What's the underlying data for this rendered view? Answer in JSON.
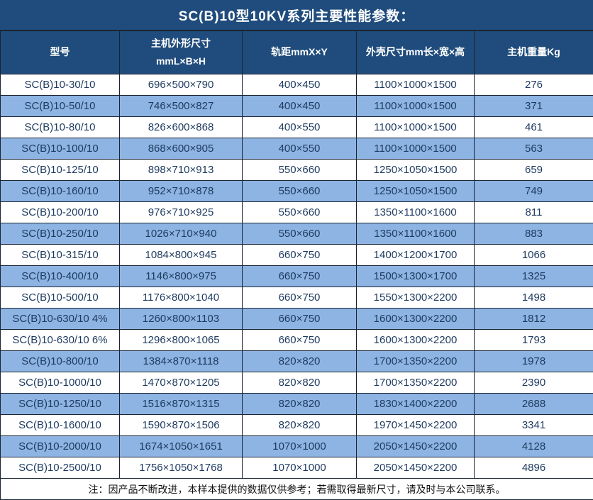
{
  "title": "SC(B)10型10KV系列主要性能参数：",
  "colors": {
    "header_bg": "#1F4C7C",
    "stripe_bg": "#8DB4E2",
    "row_bg": "#FFFFFF",
    "header_text": "#FFFFFF",
    "cell_text": "#1E3A5F",
    "note_text": "#111111",
    "border": "#1B2433"
  },
  "table": {
    "columns": [
      "型号",
      "主机外形尺寸\nmmL×B×H",
      "轨距mmX×Y",
      "外壳尺寸mm长×宽×高",
      "主机重量Kg"
    ],
    "rows": [
      [
        "SC(B)10-30/10",
        "696×500×790",
        "400×450",
        "1100×1000×1500",
        "276"
      ],
      [
        "SC(B)10-50/10",
        "746×500×827",
        "400×450",
        "1100×1000×1500",
        "371"
      ],
      [
        "SC(B)10-80/10",
        "826×600×868",
        "400×550",
        "1100×1000×1500",
        "461"
      ],
      [
        "SC(B)10-100/10",
        "868×600×905",
        "400×550",
        "1100×1000×1500",
        "563"
      ],
      [
        "SC(B)10-125/10",
        "898×710×913",
        "550×660",
        "1250×1050×1500",
        "659"
      ],
      [
        "SC(B)10-160/10",
        "952×710×878",
        "550×660",
        "1250×1050×1500",
        "749"
      ],
      [
        "SC(B)10-200/10",
        "976×710×925",
        "550×660",
        "1350×1100×1600",
        "811"
      ],
      [
        "SC(B)10-250/10",
        "1026×710×940",
        "550×660",
        "1350×1100×1600",
        "883"
      ],
      [
        "SC(B)10-315/10",
        "1084×800×945",
        "660×750",
        "1400×1200×1700",
        "1066"
      ],
      [
        "SC(B)10-400/10",
        "1146×800×975",
        "660×750",
        "1500×1300×1700",
        "1325"
      ],
      [
        "SC(B)10-500/10",
        "1176×800×1040",
        "660×750",
        "1550×1300×2200",
        "1498"
      ],
      [
        "SC(B)10-630/10 4%",
        "1260×800×1103",
        "660×750",
        "1600×1300×2200",
        "1812"
      ],
      [
        "SC(B)10-630/10 6%",
        "1296×800×1065",
        "660×750",
        "1600×1300×2200",
        "1793"
      ],
      [
        "SC(B)10-800/10",
        "1384×870×1118",
        "820×820",
        "1700×1350×2200",
        "1978"
      ],
      [
        "SC(B)10-1000/10",
        "1470×870×1205",
        "820×820",
        "1700×1350×2200",
        "2390"
      ],
      [
        "SC(B)10-1250/10",
        "1516×870×1315",
        "820×820",
        "1830×1400×2200",
        "2688"
      ],
      [
        "SC(B)10-1600/10",
        "1590×870×1506",
        "820×820",
        "1970×1450×2200",
        "3341"
      ],
      [
        "SC(B)10-2000/10",
        "1674×1050×1651",
        "1070×1000",
        "2050×1450×2200",
        "4128"
      ],
      [
        "SC(B)10-2500/10",
        "1756×1050×1768",
        "1070×1000",
        "2050×1450×2200",
        "4896"
      ]
    ]
  },
  "note": "注：因产品不断改进，本样本提供的数据仅供参考；若需取得最新尺寸，请及时与本公司联系。"
}
